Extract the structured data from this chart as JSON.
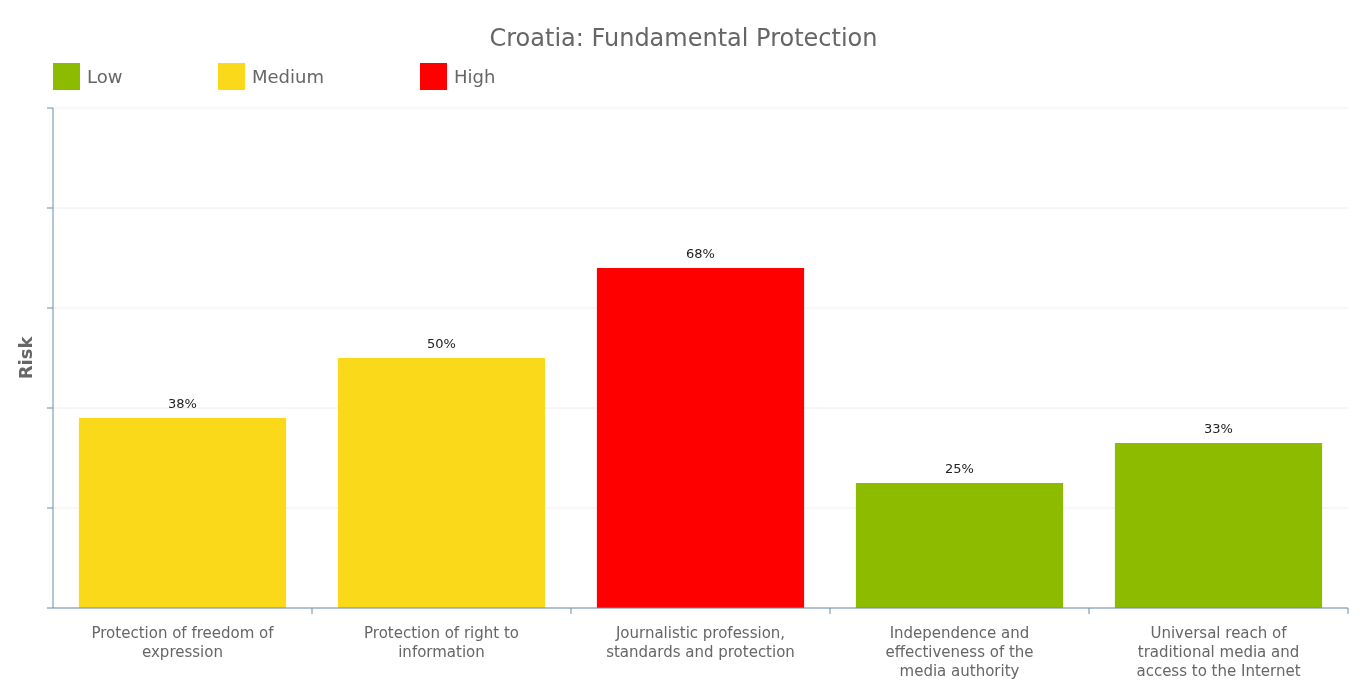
{
  "chart_data": {
    "type": "bar",
    "title": "Croatia: Fundamental Protection",
    "ylabel": "Risk",
    "categories": [
      "Protection of freedom of expression",
      "Protection of right to information",
      "Journalistic profession, standards and protection",
      "Independence and effectiveness of the media authority",
      "Universal reach of traditional media and access to the Internet"
    ],
    "series": [
      {
        "name": "Low",
        "color": "#8dbb00",
        "values": [
          null,
          null,
          null,
          25,
          33
        ],
        "value_labels": [
          null,
          null,
          null,
          "25%",
          "33%"
        ]
      },
      {
        "name": "Medium",
        "color": "#fad91b",
        "values": [
          38,
          50,
          null,
          null,
          null
        ],
        "value_labels": [
          "38%",
          "50%",
          null,
          null,
          null
        ]
      },
      {
        "name": "High",
        "color": "#ff0000",
        "values": [
          null,
          null,
          68,
          null,
          null
        ],
        "value_labels": [
          null,
          null,
          "68%",
          null,
          null
        ]
      }
    ],
    "ylim": [
      0,
      100
    ],
    "yticks": [
      {
        "value": 0,
        "label": null
      },
      {
        "value": 20,
        "label": null
      },
      {
        "value": 40,
        "label": null
      },
      {
        "value": 60,
        "label": null
      },
      {
        "value": 80,
        "label": null
      },
      {
        "value": 100,
        "label": null
      }
    ],
    "tick_labels": "x",
    "grid": "y",
    "legend": "top left"
  }
}
